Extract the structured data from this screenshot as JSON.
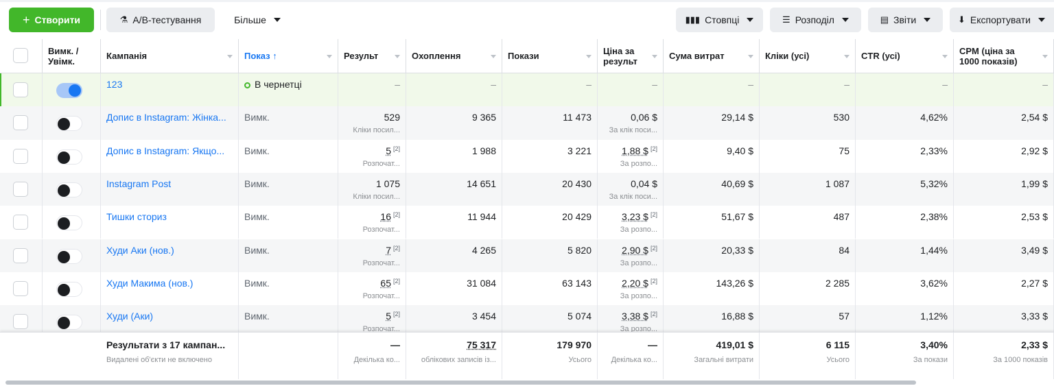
{
  "toolbar": {
    "create": "Створити",
    "ab_test": "А/В-тестування",
    "more": "Більше",
    "columns": "Стовпці",
    "breakdown": "Розподіл",
    "reports": "Звіти",
    "export": "Експортувати"
  },
  "table": {
    "headers": {
      "toggle": "Вимк. / Увімк.",
      "campaign": "Кампанія",
      "delivery": "Показ ↑",
      "results": "Результ",
      "reach": "Охоплення",
      "impressions": "Покази",
      "cost": "Ціна за результ",
      "spend": "Сума витрат",
      "clicks": "Кліки (усі)",
      "ctr": "CTR (усі)",
      "cpm": "CPM (ціна за 1000 показів)"
    },
    "rows": [
      {
        "enabled": true,
        "campaign": "123",
        "delivery": "В чернетці",
        "results": "–",
        "reach": "–",
        "impressions": "–",
        "cost": "–",
        "spend": "–",
        "clicks": "–",
        "ctr": "–",
        "cpm": "–"
      },
      {
        "enabled": false,
        "campaign": "Допис в Instagram: Жінка...",
        "delivery": "Вимк.",
        "results": "529",
        "results_sub": "Кліки посил...",
        "reach": "9 365",
        "impressions": "11 473",
        "cost": "0,06 $",
        "cost_sub": "За клік поси...",
        "spend": "29,14 $",
        "clicks": "530",
        "ctr": "4,62%",
        "cpm": "2,54 $"
      },
      {
        "enabled": false,
        "campaign": "Допис в Instagram: Якщо...",
        "delivery": "Вимк.",
        "results": "5",
        "results_note": "[2]",
        "results_sub": "Розпочат...",
        "reach": "1 988",
        "impressions": "3 221",
        "cost": "1,88 $",
        "cost_note": "[2]",
        "cost_sub": "За розпо...",
        "spend": "9,40 $",
        "clicks": "75",
        "ctr": "2,33%",
        "cpm": "2,92 $"
      },
      {
        "enabled": false,
        "campaign": "Instagram Post",
        "delivery": "Вимк.",
        "results": "1 075",
        "results_sub": "Кліки посил...",
        "reach": "14 651",
        "impressions": "20 430",
        "cost": "0,04 $",
        "cost_sub": "За клік поси...",
        "spend": "40,69 $",
        "clicks": "1 087",
        "ctr": "5,32%",
        "cpm": "1,99 $"
      },
      {
        "enabled": false,
        "campaign": "Тишки сториз",
        "delivery": "Вимк.",
        "results": "16",
        "results_note": "[2]",
        "results_sub": "Розпочат...",
        "reach": "11 944",
        "impressions": "20 429",
        "cost": "3,23 $",
        "cost_note": "[2]",
        "cost_sub": "За розпо...",
        "spend": "51,67 $",
        "clicks": "487",
        "ctr": "2,38%",
        "cpm": "2,53 $"
      },
      {
        "enabled": false,
        "campaign": "Худи Аки (нов.)",
        "delivery": "Вимк.",
        "results": "7",
        "results_note": "[2]",
        "results_sub": "Розпочат...",
        "reach": "4 265",
        "impressions": "5 820",
        "cost": "2,90 $",
        "cost_note": "[2]",
        "cost_sub": "За розпо...",
        "spend": "20,33 $",
        "clicks": "84",
        "ctr": "1,44%",
        "cpm": "3,49 $"
      },
      {
        "enabled": false,
        "campaign": "Худи Макима (нов.)",
        "delivery": "Вимк.",
        "results": "65",
        "results_note": "[2]",
        "results_sub": "Розпочат...",
        "reach": "31 084",
        "impressions": "63 143",
        "cost": "2,20 $",
        "cost_note": "[2]",
        "cost_sub": "За розпо...",
        "spend": "143,26 $",
        "clicks": "2 285",
        "ctr": "3,62%",
        "cpm": "2,27 $"
      },
      {
        "enabled": false,
        "campaign": "Худи (Аки)",
        "delivery": "Вимк.",
        "results": "5",
        "results_note": "[2]",
        "results_sub": "Розпочат...",
        "reach": "3 454",
        "impressions": "5 074",
        "cost": "3,38 $",
        "cost_note": "[2]",
        "cost_sub": "За розпо...",
        "spend": "16,88 $",
        "clicks": "57",
        "ctr": "1,12%",
        "cpm": "3,33 $"
      }
    ],
    "footer": {
      "campaign": "Результати з 17 кампан...",
      "campaign_sub": "Видалені об'єкти не включено",
      "results": "—",
      "results_sub": "Декілька ко...",
      "reach": "75 317",
      "reach_sub": "облікових записів із...",
      "impressions": "179 970",
      "impressions_sub": "Усього",
      "cost": "—",
      "cost_sub": "Декілька ко...",
      "spend": "419,01 $",
      "spend_sub": "Загальні витрати",
      "clicks": "6 115",
      "clicks_sub": "Усього",
      "ctr": "3,40%",
      "ctr_sub": "За покази",
      "cpm": "2,33 $",
      "cpm_sub": "За 1000 показів"
    }
  }
}
